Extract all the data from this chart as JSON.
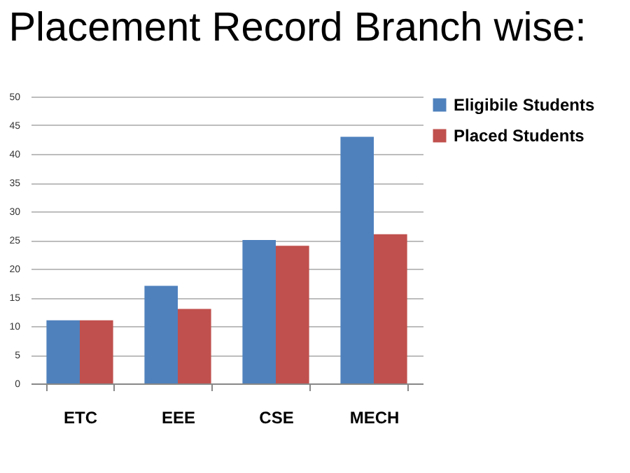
{
  "chart_data": {
    "type": "bar",
    "title": "Placement Record Branch wise:",
    "categories": [
      "ETC",
      "EEE",
      "CSE",
      "MECH"
    ],
    "series": [
      {
        "name": "Eligibile Students",
        "color": "#4f81bd",
        "values": [
          11,
          17,
          25,
          43
        ]
      },
      {
        "name": "Placed Students",
        "color": "#c0504d",
        "values": [
          11,
          13,
          24,
          26
        ]
      }
    ],
    "ylim": [
      0,
      50
    ],
    "yticks": [
      0,
      5,
      10,
      15,
      20,
      25,
      30,
      35,
      40,
      45,
      50
    ],
    "grid": "y",
    "legend": "right"
  }
}
